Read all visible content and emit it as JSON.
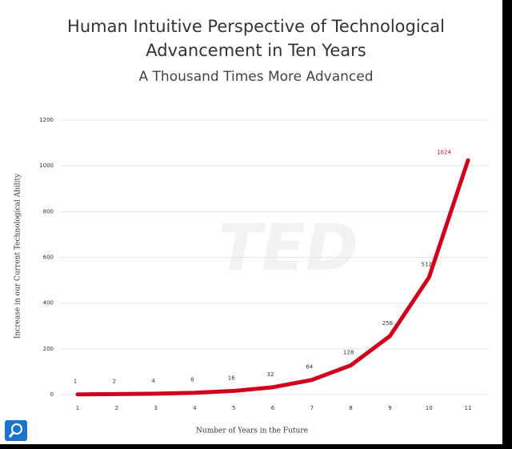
{
  "chart_data": {
    "type": "line",
    "title": "Human Intuitive Perspective of Technological Advancement in Ten Years",
    "subtitle": "A Thousand Times More Advanced",
    "watermark": "TED",
    "x_label": "Number of Years in the Future",
    "y_label": "Increase in our Current Technological Ability",
    "categories": [
      "1",
      "2",
      "3",
      "4",
      "5",
      "6",
      "7",
      "8",
      "9",
      "10",
      "11"
    ],
    "series": [
      {
        "name": "Technological Ability",
        "color": "#d0021b",
        "values": [
          1,
          2,
          4,
          8,
          16,
          32,
          64,
          128,
          256,
          512,
          1024
        ]
      }
    ],
    "ylim": [
      0,
      1200
    ],
    "yticks": [
      0,
      200,
      400,
      600,
      800,
      1000,
      1200
    ],
    "grid": true
  }
}
